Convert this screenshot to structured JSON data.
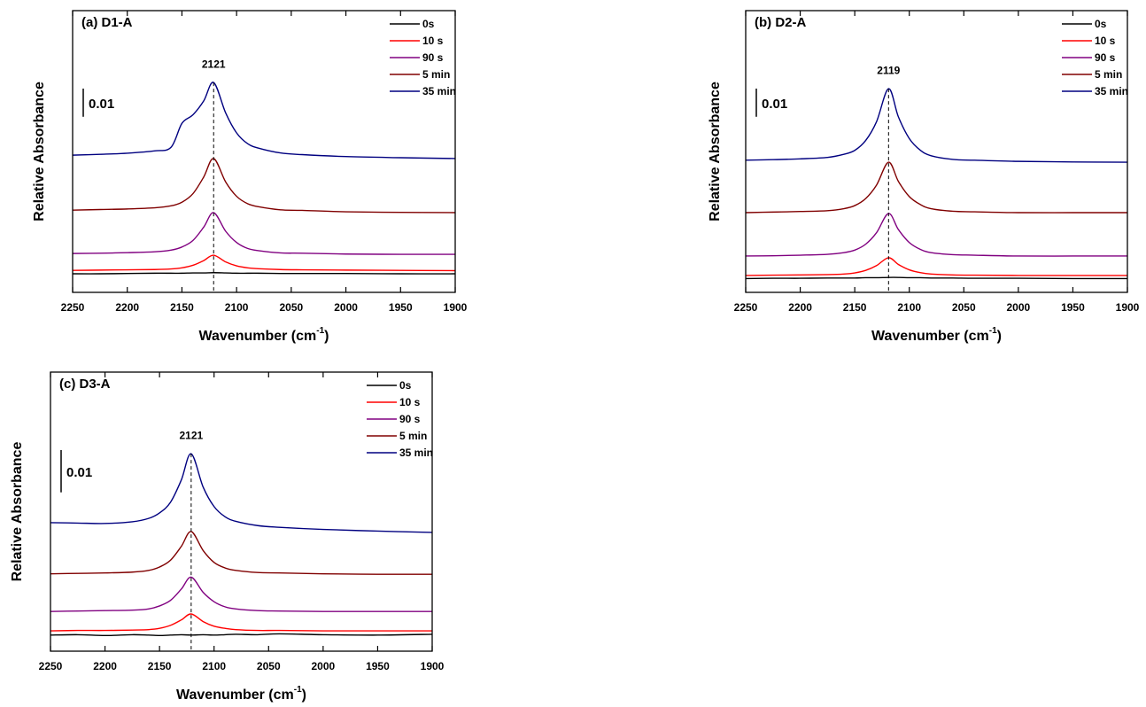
{
  "chart_data": [
    {
      "type": "line",
      "title": "(a) D1-A",
      "ylabel": "Relative Absorbance",
      "xlabel": "Wavenumber (cm",
      "xlabel_sup": "-1",
      "xlabel_end": ")",
      "x": [
        2250,
        2225,
        2200,
        2175,
        2160,
        2150,
        2140,
        2130,
        2121,
        2110,
        2100,
        2090,
        2080,
        2060,
        2040,
        2000,
        1950,
        1900
      ],
      "xlim": [
        2250,
        1900
      ],
      "xticks": [
        2250,
        2200,
        2150,
        2100,
        2050,
        2000,
        1950,
        1900
      ],
      "ylim": [
        0,
        0.1
      ],
      "scale_bar": 0.01,
      "peak": 2121,
      "legend": "upper right",
      "series": [
        {
          "name": "0s",
          "color": "#000000",
          "values": [
            0.0066,
            0.0066,
            0.0067,
            0.0068,
            0.0068,
            0.0068,
            0.0069,
            0.0069,
            0.007,
            0.0069,
            0.0068,
            0.0068,
            0.0068,
            0.0067,
            0.0067,
            0.0067,
            0.0066,
            0.0066
          ]
        },
        {
          "name": "10 s",
          "color": "#ff0000",
          "values": [
            0.0078,
            0.0079,
            0.008,
            0.0081,
            0.0083,
            0.0087,
            0.0096,
            0.0113,
            0.0132,
            0.0108,
            0.0094,
            0.0087,
            0.0084,
            0.0081,
            0.008,
            0.0079,
            0.0078,
            0.0077
          ]
        },
        {
          "name": "90 s",
          "color": "#800080",
          "values": [
            0.0138,
            0.0139,
            0.0141,
            0.0144,
            0.015,
            0.0161,
            0.0184,
            0.0232,
            0.0283,
            0.0217,
            0.0177,
            0.0156,
            0.0148,
            0.014,
            0.0139,
            0.0136,
            0.0135,
            0.0135
          ]
        },
        {
          "name": "5 min",
          "color": "#800000",
          "values": [
            0.0292,
            0.0294,
            0.0296,
            0.03,
            0.0307,
            0.032,
            0.035,
            0.041,
            0.0475,
            0.0392,
            0.0341,
            0.0315,
            0.0304,
            0.0293,
            0.0291,
            0.0286,
            0.0284,
            0.0283
          ]
        },
        {
          "name": "35 min",
          "color": "#000080",
          "values": [
            0.0487,
            0.049,
            0.0494,
            0.0502,
            0.0515,
            0.06,
            0.063,
            0.068,
            0.0745,
            0.0637,
            0.0566,
            0.0528,
            0.0512,
            0.0495,
            0.0489,
            0.0482,
            0.0478,
            0.0475
          ]
        }
      ]
    },
    {
      "type": "line",
      "title": "(b) D2-A",
      "ylabel": "Relative Absorbance",
      "xlabel": "Wavenumber (cm",
      "xlabel_sup": "-1",
      "xlabel_end": ")",
      "x": [
        2250,
        2225,
        2200,
        2175,
        2160,
        2150,
        2140,
        2130,
        2119,
        2110,
        2100,
        2090,
        2080,
        2060,
        2040,
        2000,
        1950,
        1900
      ],
      "xlim": [
        2250,
        1900
      ],
      "xticks": [
        2250,
        2200,
        2150,
        2100,
        2050,
        2000,
        1950,
        1900
      ],
      "ylim": [
        0,
        0.1
      ],
      "scale_bar": 0.01,
      "peak": 2119,
      "legend": "upper right",
      "series": [
        {
          "name": "0s",
          "color": "#000000",
          "values": [
            0.0049,
            0.005,
            0.005,
            0.0051,
            0.0051,
            0.0051,
            0.0052,
            0.0052,
            0.0053,
            0.0053,
            0.0052,
            0.0052,
            0.0051,
            0.0051,
            0.005,
            0.005,
            0.0049,
            0.0049
          ]
        },
        {
          "name": "10 s",
          "color": "#ff0000",
          "values": [
            0.006,
            0.0061,
            0.0062,
            0.0063,
            0.0065,
            0.0069,
            0.0078,
            0.0095,
            0.0123,
            0.0099,
            0.008,
            0.007,
            0.0065,
            0.0062,
            0.0061,
            0.006,
            0.006,
            0.006
          ]
        },
        {
          "name": "90 s",
          "color": "#800080",
          "values": [
            0.0129,
            0.013,
            0.0132,
            0.0135,
            0.0141,
            0.015,
            0.0171,
            0.0212,
            0.028,
            0.0223,
            0.0177,
            0.0153,
            0.0141,
            0.0134,
            0.0132,
            0.0129,
            0.0129,
            0.0129
          ]
        },
        {
          "name": "5 min",
          "color": "#800000",
          "values": [
            0.0283,
            0.0285,
            0.0287,
            0.029,
            0.0297,
            0.0308,
            0.0333,
            0.0381,
            0.0462,
            0.0394,
            0.034,
            0.0312,
            0.0297,
            0.0288,
            0.0286,
            0.0283,
            0.0283,
            0.0283
          ]
        },
        {
          "name": "35 min",
          "color": "#000080",
          "values": [
            0.0469,
            0.0471,
            0.0474,
            0.0479,
            0.049,
            0.0504,
            0.0539,
            0.0606,
            0.0723,
            0.0623,
            0.0546,
            0.0505,
            0.0485,
            0.0472,
            0.0469,
            0.0465,
            0.0463,
            0.0462
          ]
        }
      ]
    },
    {
      "type": "line",
      "title": "(c) D3-A",
      "ylabel": "Relative Absorbance",
      "xlabel": "Wavenumber (cm",
      "xlabel_sup": "-1",
      "xlabel_end": ")",
      "x": [
        2250,
        2225,
        2200,
        2175,
        2160,
        2150,
        2140,
        2130,
        2121,
        2110,
        2100,
        2090,
        2080,
        2060,
        2040,
        2000,
        1950,
        1900
      ],
      "xlim": [
        2250,
        1900
      ],
      "xticks": [
        2250,
        2200,
        2150,
        2100,
        2050,
        2000,
        1950,
        1900
      ],
      "ylim": [
        0,
        0.066
      ],
      "scale_bar": 0.01,
      "peak": 2121,
      "legend": "upper right",
      "series": [
        {
          "name": "0s",
          "color": "#000000",
          "values": [
            0.0038,
            0.0039,
            0.0037,
            0.0039,
            0.0038,
            0.0037,
            0.0038,
            0.0039,
            0.0038,
            0.0039,
            0.0038,
            0.0039,
            0.004,
            0.0039,
            0.0041,
            0.0039,
            0.0038,
            0.004
          ]
        },
        {
          "name": "10 s",
          "color": "#ff0000",
          "values": [
            0.0048,
            0.0049,
            0.0049,
            0.005,
            0.0051,
            0.0054,
            0.0061,
            0.0074,
            0.0088,
            0.007,
            0.0059,
            0.0054,
            0.0051,
            0.0049,
            0.0049,
            0.0048,
            0.0048,
            0.0048
          ]
        },
        {
          "name": "90 s",
          "color": "#800080",
          "values": [
            0.0094,
            0.0095,
            0.0096,
            0.0097,
            0.01,
            0.0107,
            0.012,
            0.0147,
            0.0175,
            0.0139,
            0.0117,
            0.0105,
            0.01,
            0.0096,
            0.0095,
            0.0094,
            0.0094,
            0.0094
          ]
        },
        {
          "name": "5 min",
          "color": "#800000",
          "values": [
            0.0183,
            0.0184,
            0.0185,
            0.0187,
            0.0191,
            0.0199,
            0.0215,
            0.0248,
            0.0283,
            0.0238,
            0.021,
            0.0197,
            0.0191,
            0.0186,
            0.0185,
            0.0183,
            0.0182,
            0.0182
          ]
        },
        {
          "name": "35 min",
          "color": "#000080",
          "values": [
            0.0304,
            0.0303,
            0.0302,
            0.0306,
            0.0314,
            0.0327,
            0.0352,
            0.0405,
            0.0467,
            0.0388,
            0.0342,
            0.0318,
            0.0307,
            0.0297,
            0.0293,
            0.0288,
            0.0284,
            0.0281
          ]
        }
      ]
    }
  ]
}
